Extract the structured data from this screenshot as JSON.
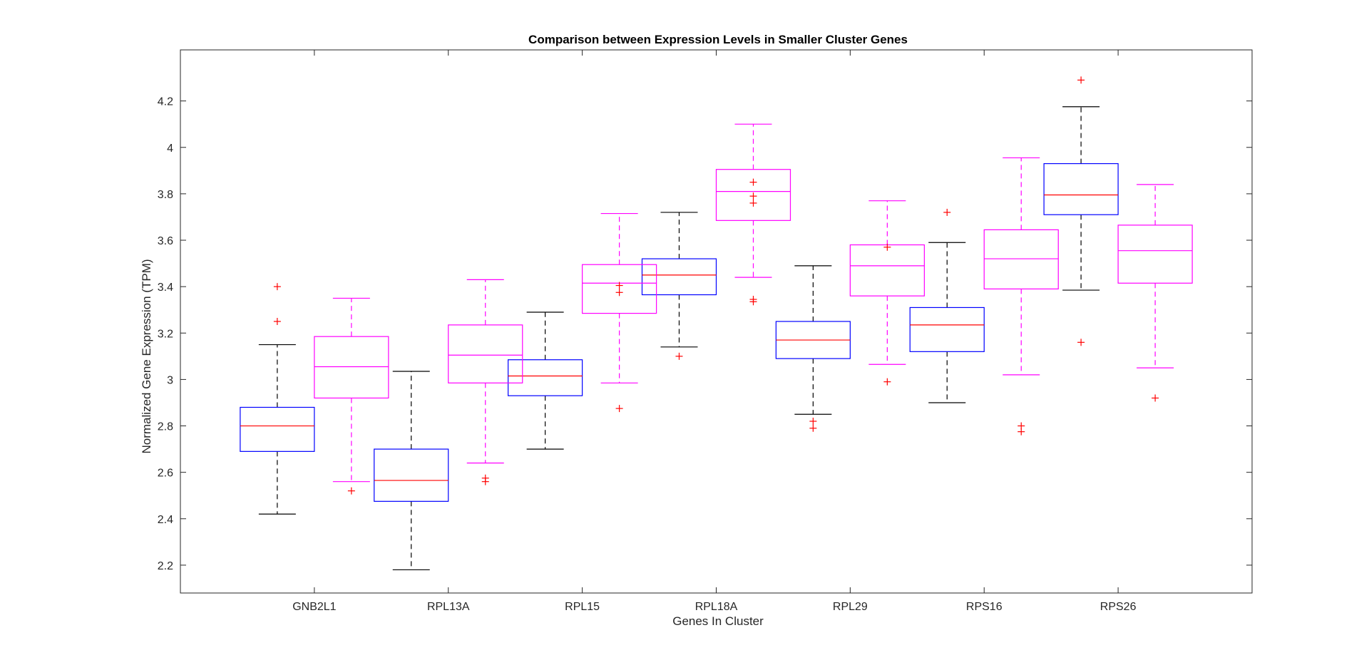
{
  "chart_data": {
    "type": "box",
    "title": "Comparison between Expression Levels in Smaller Cluster Genes",
    "xlabel": "Genes In Cluster",
    "ylabel": "Normalized Gene Expression (TPM)",
    "ylim": [
      2.08,
      4.42
    ],
    "yticks": [
      2.2,
      2.4,
      2.6,
      2.8,
      3,
      3.2,
      3.4,
      3.6,
      3.8,
      4,
      4.2
    ],
    "ytick_labels": [
      "2.2",
      "2.4",
      "2.6",
      "2.8",
      "3",
      "3.2",
      "3.4",
      "3.6",
      "3.8",
      "4",
      "4.2"
    ],
    "categories": [
      "GNB2L1",
      "RPL13A",
      "RPL15",
      "RPL18A",
      "RPL29",
      "RPS16",
      "RPS26"
    ],
    "grid": false,
    "colors": {
      "box_group1": "#0000ff",
      "box_group2": "#ff00ff",
      "median_group1": "#ff0000",
      "median_group2": "#ff00ff",
      "whisker_group1": "#000000",
      "whisker_group2": "#ff00ff",
      "outlier": "#ff0000",
      "axes": "#262626"
    },
    "series": [
      {
        "boxes": [
          {
            "category": "GNB2L1",
            "q1": 2.69,
            "median": 2.8,
            "q3": 2.88,
            "whisker_low": 2.42,
            "whisker_high": 3.15,
            "outliers": [
              3.4,
              3.25
            ]
          },
          {
            "category": "RPL13A",
            "q1": 2.475,
            "median": 2.565,
            "q3": 2.7,
            "whisker_low": 2.18,
            "whisker_high": 3.035,
            "outliers": []
          },
          {
            "category": "RPL15",
            "q1": 2.93,
            "median": 3.015,
            "q3": 3.085,
            "whisker_low": 2.7,
            "whisker_high": 3.29,
            "outliers": []
          },
          {
            "category": "RPL18A",
            "q1": 3.365,
            "median": 3.45,
            "q3": 3.52,
            "whisker_low": 3.14,
            "whisker_high": 3.72,
            "outliers": [
              3.1
            ]
          },
          {
            "category": "RPL29",
            "q1": 3.09,
            "median": 3.17,
            "q3": 3.25,
            "whisker_low": 2.85,
            "whisker_high": 3.49,
            "outliers": [
              2.82,
              2.79
            ]
          },
          {
            "category": "RPS16",
            "q1": 3.12,
            "median": 3.235,
            "q3": 3.31,
            "whisker_low": 2.9,
            "whisker_high": 3.59,
            "outliers": [
              3.72
            ]
          },
          {
            "category": "RPS26",
            "q1": 3.71,
            "median": 3.795,
            "q3": 3.93,
            "whisker_low": 3.385,
            "whisker_high": 4.175,
            "outliers": [
              4.29,
              3.16
            ]
          }
        ]
      },
      {
        "boxes": [
          {
            "category": "GNB2L1",
            "q1": 2.92,
            "median": 3.055,
            "q3": 3.185,
            "whisker_low": 2.56,
            "whisker_high": 3.35,
            "outliers": [
              2.52
            ]
          },
          {
            "category": "RPL13A",
            "q1": 2.985,
            "median": 3.105,
            "q3": 3.235,
            "whisker_low": 2.64,
            "whisker_high": 3.43,
            "outliers": [
              2.575,
              2.56
            ]
          },
          {
            "category": "RPL15",
            "q1": 3.285,
            "median": 3.415,
            "q3": 3.495,
            "whisker_low": 2.985,
            "whisker_high": 3.715,
            "outliers": [
              3.405,
              3.375,
              2.875
            ]
          },
          {
            "category": "RPL18A",
            "q1": 3.685,
            "median": 3.81,
            "q3": 3.905,
            "whisker_low": 3.44,
            "whisker_high": 4.1,
            "outliers": [
              3.85,
              3.79,
              3.76,
              3.345,
              3.335
            ]
          },
          {
            "category": "RPL29",
            "q1": 3.36,
            "median": 3.49,
            "q3": 3.58,
            "whisker_low": 3.065,
            "whisker_high": 3.77,
            "outliers": [
              3.57,
              2.99
            ]
          },
          {
            "category": "RPS16",
            "q1": 3.39,
            "median": 3.52,
            "q3": 3.645,
            "whisker_low": 3.02,
            "whisker_high": 3.955,
            "outliers": [
              2.8,
              2.775
            ]
          },
          {
            "category": "RPS26",
            "q1": 3.415,
            "median": 3.555,
            "q3": 3.665,
            "whisker_low": 3.05,
            "whisker_high": 3.84,
            "outliers": [
              2.92
            ]
          }
        ]
      }
    ]
  }
}
